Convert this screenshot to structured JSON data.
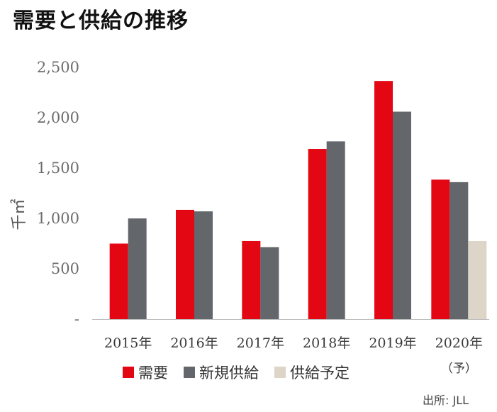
{
  "title": "需要と供給の推移",
  "source": "出所: JLL",
  "colors": {
    "demand": "#e30613",
    "new_supply": "#63666a",
    "planned_supply": "#ddd5c7",
    "axis": "#bbbbbb"
  },
  "chart_data": {
    "type": "bar",
    "title": "需要と供給の推移",
    "ylabel": "千㎡",
    "xlabel": "",
    "categories": [
      "2015年",
      "2016年",
      "2017年",
      "2018年",
      "2019年",
      "2020年"
    ],
    "category_notes": [
      "",
      "",
      "",
      "",
      "",
      "（予）"
    ],
    "ylim": [
      0,
      2500
    ],
    "yticks": [
      0,
      500,
      1000,
      1500,
      2000,
      2500
    ],
    "ytick_labels": [
      "-",
      "500",
      "1,000",
      "1,500",
      "2,000",
      "2,500"
    ],
    "grid": false,
    "legend_position": "bottom",
    "series": [
      {
        "name": "需要",
        "color": "#e30613",
        "values": [
          750,
          1085,
          775,
          1690,
          2365,
          1385
        ]
      },
      {
        "name": "新規供給",
        "color": "#63666a",
        "values": [
          1000,
          1070,
          715,
          1765,
          2060,
          1360
        ]
      },
      {
        "name": "供給予定",
        "color": "#ddd5c7",
        "values": [
          null,
          null,
          null,
          null,
          null,
          775
        ]
      }
    ]
  }
}
